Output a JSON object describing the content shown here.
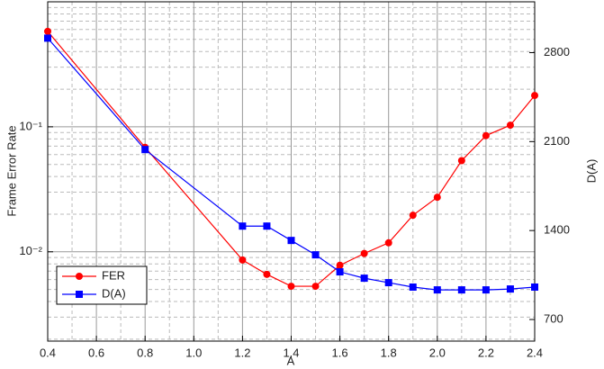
{
  "chart_data": {
    "type": "line",
    "x_label": "A",
    "y_label": "Frame Error Rate",
    "y2_label": "D(A)",
    "x": [
      0.4,
      0.8,
      1.2,
      1.3,
      1.4,
      1.5,
      1.6,
      1.7,
      1.8,
      1.9,
      2.0,
      2.1,
      2.2,
      2.3,
      2.4
    ],
    "series": [
      {
        "name": "FER",
        "color": "#ff0000",
        "marker": "circle",
        "axis": "y",
        "values": [
          0.58,
          0.0685,
          0.0086,
          0.0066,
          0.0053,
          0.0053,
          0.0078,
          0.0097,
          0.0118,
          0.0196,
          0.0273,
          0.0536,
          0.085,
          0.103,
          0.178
        ]
      },
      {
        "name": "D(A)",
        "color": "#0000ff",
        "marker": "square",
        "axis": "y2",
        "values": [
          2914,
          2037,
          1435,
          1435,
          1322,
          1209,
          1075,
          1025,
          990,
          955,
          933,
          933,
          933,
          940,
          955
        ]
      }
    ],
    "xlim": [
      0.4,
      2.4
    ],
    "xticks": [
      0.4,
      0.6,
      0.8,
      {
        "value": 1,
        "label": "1.0"
      },
      1.2,
      1.4,
      1.6,
      1.8,
      {
        "value": 2,
        "label": "2.0"
      },
      2.2,
      2.4
    ],
    "ylim": [
      0.00193,
      1
    ],
    "y_scale": "log",
    "yticks": [
      {
        "value": 0.01,
        "label": "10⁻²"
      },
      {
        "value": 0.1,
        "label": "10⁻¹"
      }
    ],
    "y2lim": [
      530,
      3200
    ],
    "y2ticks": [
      700,
      1400,
      2100,
      2800
    ],
    "grid": true,
    "legend": "lower left"
  }
}
